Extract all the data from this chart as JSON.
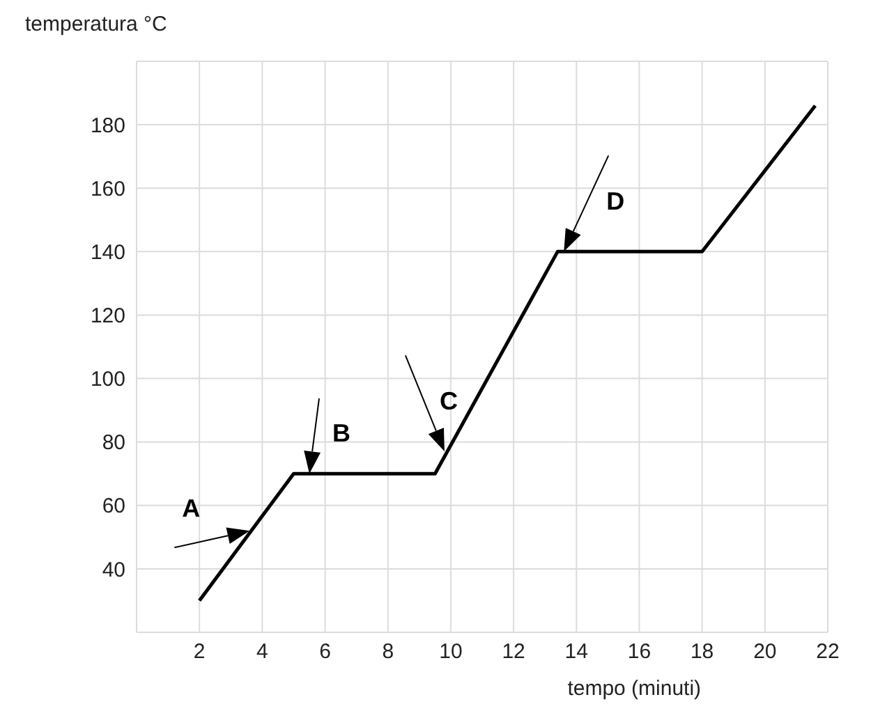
{
  "chart_data": {
    "type": "line",
    "xlabel": "tempo (minuti)",
    "ylabel": "temperatura °C",
    "x": [
      2,
      5,
      9.5,
      13.4,
      18,
      21.6
    ],
    "series": [
      {
        "color": "#000000",
        "values": [
          30,
          70,
          70,
          140,
          140,
          186
        ]
      }
    ],
    "xlim": [
      0,
      22
    ],
    "xticks": [
      2,
      4,
      6,
      8,
      10,
      12,
      14,
      16,
      18,
      20,
      22
    ],
    "ylim": [
      20,
      200
    ],
    "yticks": [
      {
        "value": 20,
        "label": null
      },
      40,
      60,
      80,
      100,
      120,
      140,
      160,
      180,
      {
        "value": 200,
        "label": null
      }
    ],
    "grid": true,
    "legend": false,
    "marker": "none",
    "line_style": "solid",
    "annotations": [
      {
        "text": "A",
        "x": 3.6,
        "y": 52
      },
      {
        "text": "B",
        "x": 5.5,
        "y": 70
      },
      {
        "text": "C",
        "x": 9.8,
        "y": 77
      },
      {
        "text": "D",
        "x": 13.6,
        "y": 140
      }
    ]
  }
}
